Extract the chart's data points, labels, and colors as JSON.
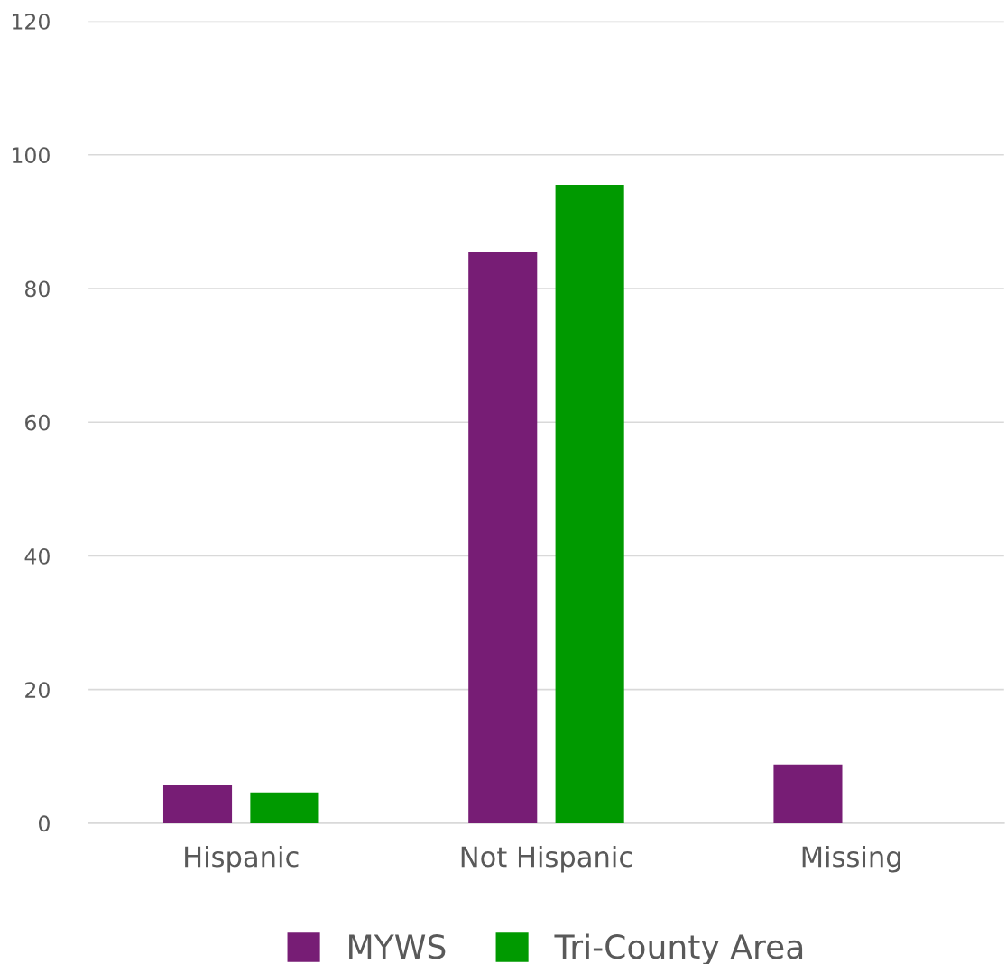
{
  "chart_data": {
    "type": "bar",
    "categories": [
      "Hispanic",
      "Not Hispanic",
      "Missing"
    ],
    "series": [
      {
        "name": "MYWS",
        "color": "#771d75",
        "values": [
          5.8,
          85.5,
          8.8
        ]
      },
      {
        "name": "Tri-County Area",
        "color": "#009a00",
        "values": [
          4.6,
          95.5,
          null
        ]
      }
    ],
    "ylim": [
      0,
      120
    ],
    "yticks": [
      0,
      20,
      40,
      60,
      80,
      100,
      120
    ],
    "grid": "y",
    "legend": "bottom"
  }
}
